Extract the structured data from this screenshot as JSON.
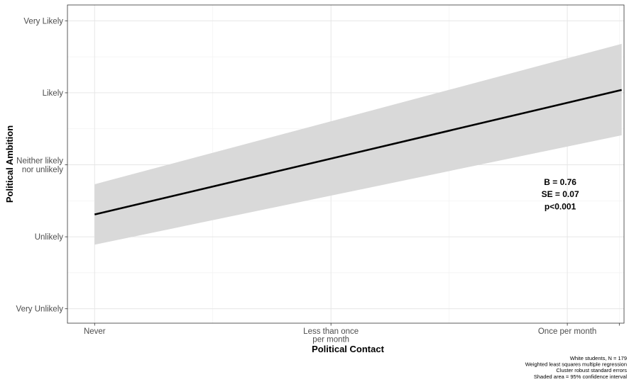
{
  "chart_data": {
    "type": "line",
    "xlabel": "Political Contact",
    "ylabel": "Political Ambition",
    "x_categories": [
      {
        "value": 1,
        "label": [
          "Never"
        ]
      },
      {
        "value": 2,
        "label": [
          "Less than once",
          "per month"
        ]
      },
      {
        "value": 3,
        "label": [
          "Once per month"
        ]
      }
    ],
    "xlim": [
      0.885,
      3.24
    ],
    "y_categories": [
      {
        "value": 1,
        "label": [
          "Very Unlikely"
        ]
      },
      {
        "value": 2,
        "label": [
          "Unlikely"
        ]
      },
      {
        "value": 3,
        "label": [
          "Neither likely",
          "nor unlikely"
        ]
      },
      {
        "value": 4,
        "label": [
          "Likely"
        ]
      },
      {
        "value": 5,
        "label": [
          "Very Likely"
        ]
      }
    ],
    "ylim": [
      0.8,
      5.22
    ],
    "grid": true,
    "series": [
      {
        "x": [
          1.0,
          3.23
        ],
        "fit": [
          2.31,
          4.04
        ],
        "lower": [
          1.89,
          3.41
        ],
        "upper": [
          2.73,
          4.68
        ]
      }
    ],
    "colors": {
      "line": "#000000",
      "ribbon": "#d9d9d9",
      "grid_major": "#e6e6e6",
      "grid_minor": "#f2f2f2",
      "panel_border": "#333333"
    },
    "annotation": [
      "B = 0.76",
      "SE = 0.07",
      "p<0.001"
    ],
    "annotation_pos": {
      "x": 3.0,
      "y": [
        2.76,
        2.59,
        2.42
      ]
    },
    "caption": [
      "White students, N = 179",
      "Weighted least squares multiple regression",
      "Cluster robust standard errors",
      "Shaded area = 95% confidence interval"
    ]
  }
}
